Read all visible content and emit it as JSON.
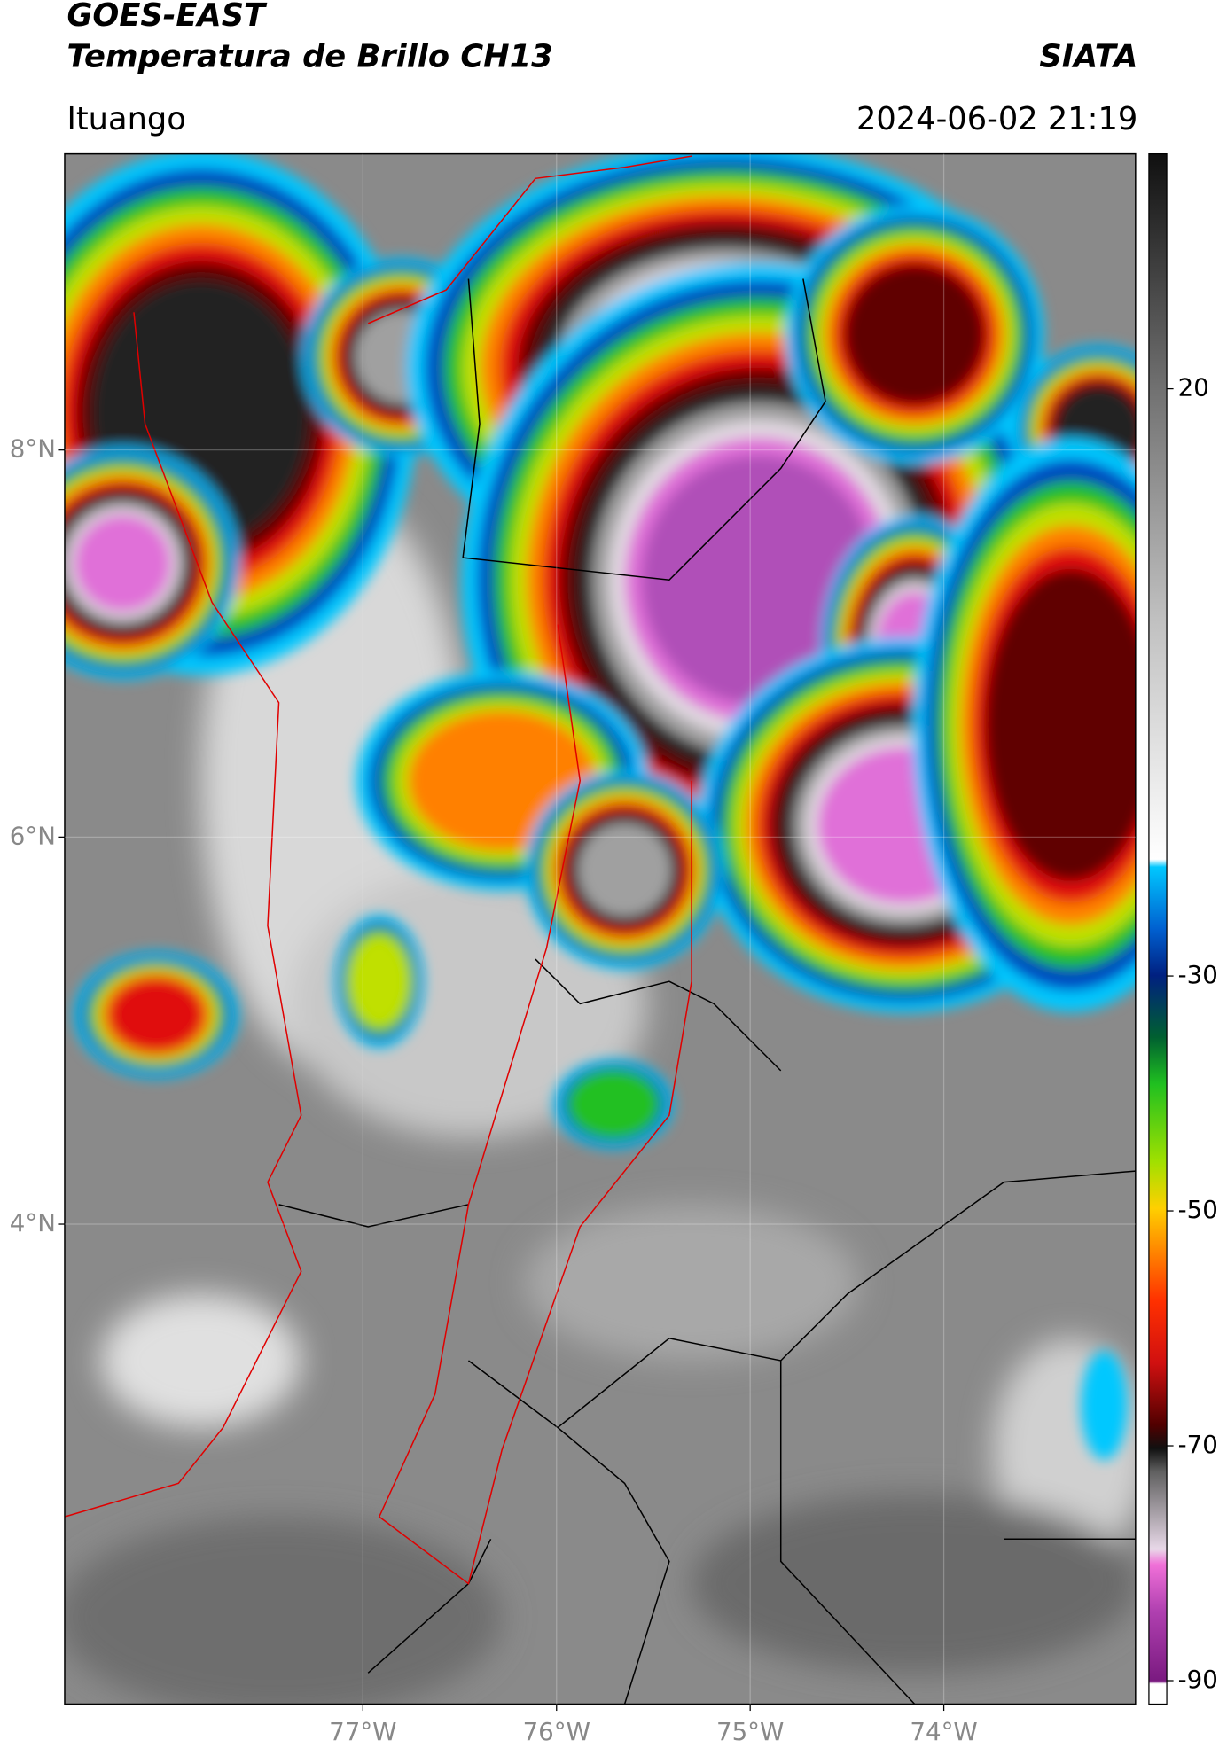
{
  "header": {
    "title": "GOES-EAST",
    "subtitle": "Temperatura de Brillo CH13",
    "source": "SIATA",
    "location": "Ituango",
    "datetime": "2024-06-02 21:19"
  },
  "map": {
    "xlim": [
      -78.54,
      -73.01
    ],
    "ylim": [
      1.52,
      9.53
    ],
    "xticks": [
      {
        "value": -77,
        "label": "77°W"
      },
      {
        "value": -76,
        "label": "76°W"
      },
      {
        "value": -75,
        "label": "75°W"
      },
      {
        "value": -74,
        "label": "74°W"
      }
    ],
    "yticks": [
      {
        "value": 8,
        "label": "8°N"
      },
      {
        "value": 6,
        "label": "6°N"
      },
      {
        "value": 4,
        "label": "4°N"
      }
    ],
    "grid": true
  },
  "colorbar": {
    "lim": [
      -92,
      40
    ],
    "ticks": [
      20,
      -30,
      -50,
      -70,
      -90
    ]
  }
}
